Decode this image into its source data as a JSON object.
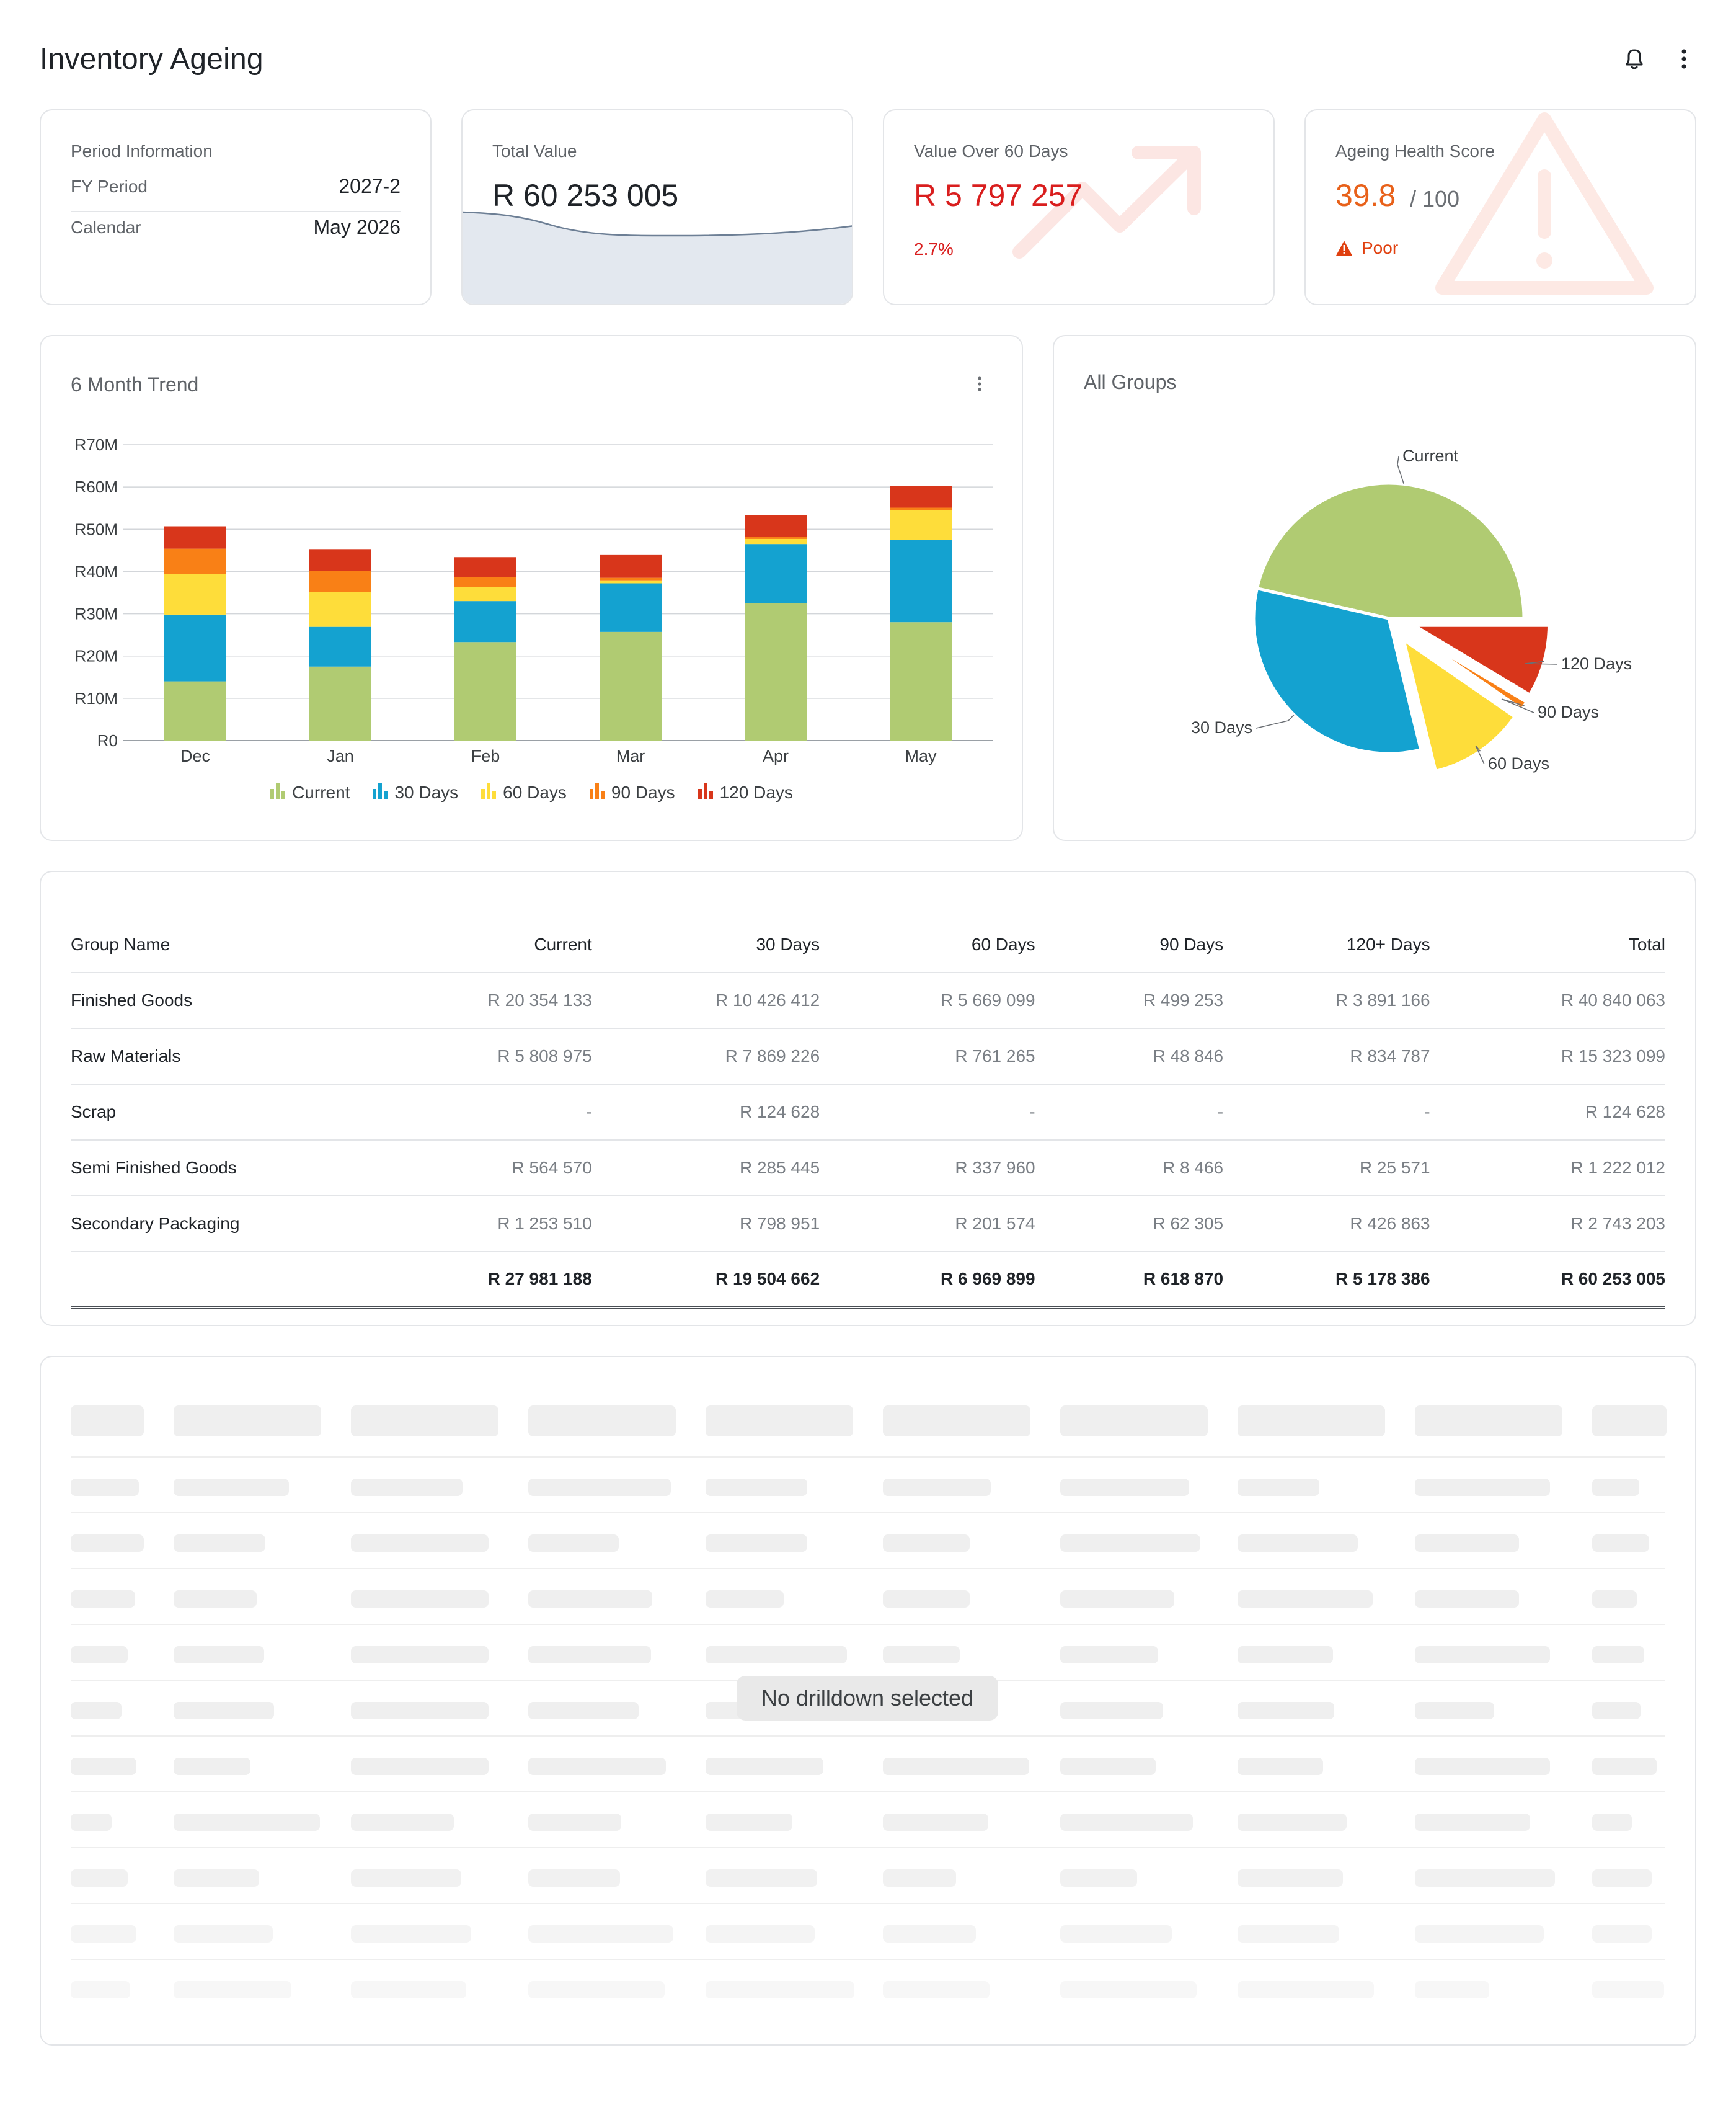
{
  "page": {
    "title": "Inventory Ageing"
  },
  "header": {
    "icons": [
      "bell-icon",
      "more-vertical-icon"
    ]
  },
  "period_card": {
    "label": "Period Information",
    "rows": [
      {
        "key": "FY Period",
        "value": "2027-2"
      },
      {
        "key": "Calendar",
        "value": "May 2026"
      }
    ]
  },
  "total_card": {
    "label": "Total Value",
    "value": "R 60 253 005"
  },
  "over60_card": {
    "label": "Value Over 60 Days",
    "value": "R 5 797 257",
    "pct": "2.7%",
    "icon": "trend-up-icon"
  },
  "health_card": {
    "label": "Ageing Health Score",
    "score": "39.8",
    "max": "/ 100",
    "status": "Poor",
    "icon": "warning-icon"
  },
  "colors": {
    "current": "#b0cb72",
    "d30": "#14a2d0",
    "d60": "#fedd3a",
    "d90": "#f98016",
    "d120": "#d8361b",
    "danger": "#d91e1e",
    "warning": "#e8611a"
  },
  "trend": {
    "title": "6 Month Trend",
    "legend": [
      "Current",
      "30 Days",
      "60 Days",
      "90 Days",
      "120 Days"
    ]
  },
  "pie": {
    "title": "All Groups",
    "labels": [
      "Current",
      "30 Days",
      "60 Days",
      "90 Days",
      "120 Days"
    ]
  },
  "chart_data": [
    {
      "type": "bar",
      "title": "6 Month Trend",
      "stacked": true,
      "categories": [
        "Dec",
        "Jan",
        "Feb",
        "Mar",
        "Apr",
        "May"
      ],
      "y_ticks": [
        "R0",
        "R10M",
        "R20M",
        "R30M",
        "R40M",
        "R50M",
        "R60M",
        "R70M"
      ],
      "ylim": [
        0,
        70
      ],
      "unit": "R million",
      "series": [
        {
          "name": "Current",
          "values": [
            14,
            17.5,
            23.3,
            25.7,
            32.5,
            28
          ]
        },
        {
          "name": "30 Days",
          "values": [
            15.8,
            9.4,
            9.7,
            11.5,
            14,
            19.5
          ]
        },
        {
          "name": "60 Days",
          "values": [
            9.6,
            8.2,
            3.3,
            0.7,
            1.2,
            7
          ]
        },
        {
          "name": "90 Days",
          "values": [
            6,
            5,
            2.4,
            0.6,
            0.5,
            0.6
          ]
        },
        {
          "name": "120 Days",
          "values": [
            5.3,
            5.2,
            4.7,
            5.4,
            5.2,
            5.2
          ]
        }
      ],
      "legend_position": "bottom"
    },
    {
      "type": "pie",
      "title": "All Groups",
      "labels": [
        "Current",
        "30 Days",
        "60 Days",
        "90 Days",
        "120 Days"
      ],
      "values": [
        27981188,
        19504662,
        6969899,
        618870,
        5178386
      ],
      "exploded": [
        "60 Days",
        "90 Days",
        "120 Days"
      ]
    }
  ],
  "table": {
    "columns": [
      "Group Name",
      "Current",
      "30 Days",
      "60 Days",
      "90 Days",
      "120+ Days",
      "Total"
    ],
    "rows": [
      [
        "Finished Goods",
        "R 20 354 133",
        "R 10 426 412",
        "R 5 669 099",
        "R 499 253",
        "R 3 891 166",
        "R 40 840 063"
      ],
      [
        "Raw Materials",
        "R 5 808 975",
        "R 7 869 226",
        "R 761 265",
        "R 48 846",
        "R 834 787",
        "R 15 323 099"
      ],
      [
        "Scrap",
        "-",
        "R 124 628",
        "-",
        "-",
        "-",
        "R 124 628"
      ],
      [
        "Semi Finished Goods",
        "R 564 570",
        "R 285 445",
        "R 337 960",
        "R 8 466",
        "R 25 571",
        "R 1 222 012"
      ],
      [
        "Secondary Packaging",
        "R 1 253 510",
        "R 798 951",
        "R 201 574",
        "R 62 305",
        "R 426 863",
        "R 2 743 203"
      ]
    ],
    "totals": [
      "",
      "R 27 981 188",
      "R 19 504 662",
      "R 6 969 899",
      "R 618 870",
      "R 5 178 386",
      "R 60 253 005"
    ]
  },
  "drilldown": {
    "empty_message": "No drilldown selected"
  }
}
